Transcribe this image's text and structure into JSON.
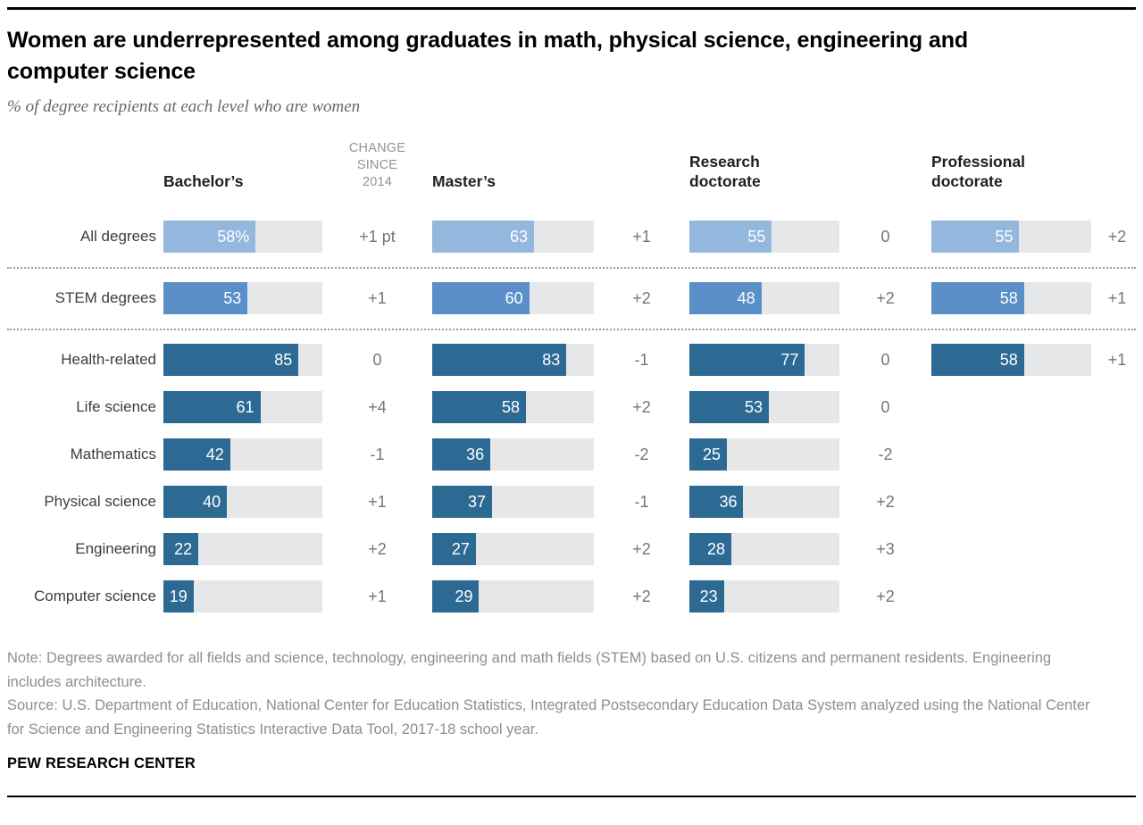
{
  "header": {
    "title": "Women are underrepresented among graduates in math, physical science, engineering and computer science",
    "subtitle": "% of degree recipients at each level who are women"
  },
  "labels": {
    "change_header": "CHANGE SINCE 2014"
  },
  "colors": {
    "light_blue": "#94b7de",
    "medium_blue": "#5b8fc9",
    "dark_blue": "#2c6a94",
    "track_gray": "#e6e7e8",
    "change_text": "#767676",
    "note_text": "#8e8e8e"
  },
  "chart_data": {
    "type": "bar",
    "orientation": "horizontal",
    "title": "Women are underrepresented among graduates in math, physical science, engineering and computer science",
    "xlabel": "% of degree recipients at each level who are women",
    "xlim": [
      0,
      100
    ],
    "grid": false,
    "categories": [
      "All degrees",
      "STEM degrees",
      "Health-related",
      "Life science",
      "Mathematics",
      "Physical science",
      "Engineering",
      "Computer science"
    ],
    "row_styles": [
      "light_blue",
      "medium_blue",
      "dark_blue",
      "dark_blue",
      "dark_blue",
      "dark_blue",
      "dark_blue",
      "dark_blue"
    ],
    "divider_after_rows": [
      0,
      1
    ],
    "series": [
      {
        "name": "Bachelor’s",
        "values": [
          58,
          53,
          85,
          61,
          42,
          40,
          22,
          19
        ],
        "display": [
          "58%",
          "53",
          "85",
          "61",
          "42",
          "40",
          "22",
          "19"
        ],
        "change_since_2014": [
          "+1 pt",
          "+1",
          "0",
          "+4",
          "-1",
          "+1",
          "+2",
          "+1"
        ]
      },
      {
        "name": "Master’s",
        "values": [
          63,
          60,
          83,
          58,
          36,
          37,
          27,
          29
        ],
        "display": [
          "63",
          "60",
          "83",
          "58",
          "36",
          "37",
          "27",
          "29"
        ],
        "change_since_2014": [
          "+1",
          "+2",
          "-1",
          "+2",
          "-2",
          "-1",
          "+2",
          "+2"
        ]
      },
      {
        "name": "Research doctorate",
        "values": [
          55,
          48,
          77,
          53,
          25,
          36,
          28,
          23
        ],
        "display": [
          "55",
          "48",
          "77",
          "53",
          "25",
          "36",
          "28",
          "23"
        ],
        "change_since_2014": [
          "0",
          "+2",
          "0",
          "0",
          "-2",
          "+2",
          "+3",
          "+2"
        ]
      },
      {
        "name": "Professional doctorate",
        "values": [
          55,
          58,
          58,
          null,
          null,
          null,
          null,
          null
        ],
        "display": [
          "55",
          "58",
          "58",
          null,
          null,
          null,
          null,
          null
        ],
        "change_since_2014": [
          "+2",
          "+1",
          "+1",
          null,
          null,
          null,
          null,
          null
        ]
      }
    ]
  },
  "footer": {
    "note": "Note: Degrees awarded for all fields and science, technology, engineering and math fields (STEM) based on U.S. citizens and permanent residents. Engineering includes architecture.",
    "source": "Source: U.S. Department of Education, National Center for Education Statistics, Integrated Postsecondary Education Data System analyzed using the National Center for Science and Engineering Statistics Interactive Data Tool, 2017-18 school year.",
    "brand": "PEW RESEARCH CENTER"
  }
}
